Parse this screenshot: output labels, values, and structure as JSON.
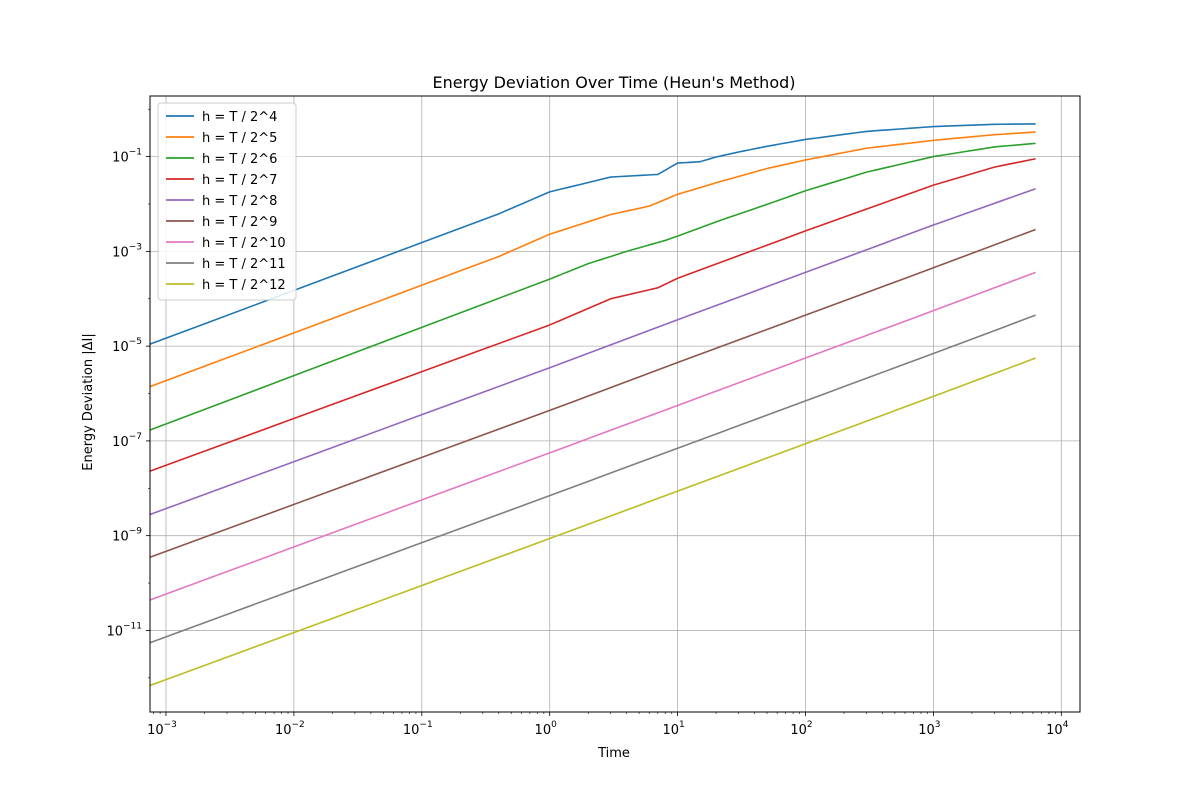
{
  "chart_data": {
    "type": "line",
    "title": "Energy Deviation Over Time (Heun's Method)",
    "xlabel": "Time",
    "ylabel": "Energy Deviation |ΔI|",
    "xscale": "log",
    "yscale": "log",
    "xlim": [
      0.00075,
      14000
    ],
    "ylim": [
      1.9e-13,
      1.9
    ],
    "grid": true,
    "legend_position": "upper-left",
    "x_tick_labels": [
      {
        "base": "10",
        "exp": "−3",
        "value": 0.001
      },
      {
        "base": "10",
        "exp": "−2",
        "value": 0.01
      },
      {
        "base": "10",
        "exp": "−1",
        "value": 0.1
      },
      {
        "base": "10",
        "exp": "0",
        "value": 1
      },
      {
        "base": "10",
        "exp": "1",
        "value": 10
      },
      {
        "base": "10",
        "exp": "2",
        "value": 100
      },
      {
        "base": "10",
        "exp": "3",
        "value": 1000
      },
      {
        "base": "10",
        "exp": "4",
        "value": 10000
      }
    ],
    "y_tick_labels": [
      {
        "base": "10",
        "exp": "−11",
        "value": 1e-11
      },
      {
        "base": "10",
        "exp": "−9",
        "value": 1e-09
      },
      {
        "base": "10",
        "exp": "−7",
        "value": 1e-07
      },
      {
        "base": "10",
        "exp": "−5",
        "value": 1e-05
      },
      {
        "base": "10",
        "exp": "−3",
        "value": 0.001
      },
      {
        "base": "10",
        "exp": "−1",
        "value": 0.1
      }
    ],
    "series": [
      {
        "name": "h = T / 2^4",
        "color": "#1f77b4",
        "x": [
          0.00075,
          0.4,
          1,
          3,
          7,
          10,
          15,
          20,
          30,
          50,
          100,
          300,
          1000,
          3000,
          6300
        ],
        "y": [
          1.1e-05,
          0.0062,
          0.018,
          0.037,
          0.042,
          0.073,
          0.078,
          0.098,
          0.125,
          0.165,
          0.23,
          0.34,
          0.43,
          0.48,
          0.49
        ]
      },
      {
        "name": "h = T / 2^5",
        "color": "#ff7f0e",
        "x": [
          0.00075,
          0.4,
          1,
          3,
          6,
          10,
          20,
          50,
          100,
          300,
          1000,
          3000,
          6300
        ],
        "y": [
          1.4e-06,
          0.00078,
          0.0023,
          0.006,
          0.009,
          0.016,
          0.028,
          0.056,
          0.085,
          0.15,
          0.22,
          0.29,
          0.33
        ]
      },
      {
        "name": "h = T / 2^6",
        "color": "#2ca02c",
        "x": [
          0.00075,
          1,
          2,
          4,
          8,
          10,
          20,
          50,
          100,
          300,
          1000,
          3000,
          6300
        ],
        "y": [
          1.7e-07,
          0.00026,
          0.00055,
          0.001,
          0.0017,
          0.0021,
          0.0042,
          0.0098,
          0.019,
          0.047,
          0.1,
          0.16,
          0.19
        ]
      },
      {
        "name": "h = T / 2^7",
        "color": "#d62728",
        "x": [
          0.00075,
          1,
          3,
          7,
          10,
          100,
          1000,
          3000,
          6300
        ],
        "y": [
          2.3e-08,
          2.8e-05,
          0.0001,
          0.00017,
          0.00027,
          0.0027,
          0.025,
          0.06,
          0.09
        ]
      },
      {
        "name": "h = T / 2^8",
        "color": "#9467bd",
        "x": [
          0.00075,
          1,
          10,
          100,
          1000,
          6300
        ],
        "y": [
          2.8e-09,
          3.5e-06,
          3.6e-05,
          0.00036,
          0.0036,
          0.021
        ]
      },
      {
        "name": "h = T / 2^9",
        "color": "#8c564b",
        "x": [
          0.00075,
          1,
          10,
          100,
          1000,
          6300
        ],
        "y": [
          3.5e-10,
          4.4e-07,
          4.5e-06,
          4.5e-05,
          0.00045,
          0.0029
        ]
      },
      {
        "name": "h = T / 2^10",
        "color": "#e377c2",
        "x": [
          0.00075,
          1,
          10,
          100,
          1000,
          6300
        ],
        "y": [
          4.4e-11,
          5.6e-08,
          5.6e-07,
          5.6e-06,
          5.6e-05,
          0.00036
        ]
      },
      {
        "name": "h = T / 2^11",
        "color": "#7f7f7f",
        "x": [
          0.00075,
          1,
          10,
          100,
          1000,
          6300
        ],
        "y": [
          5.5e-12,
          7e-09,
          7e-08,
          7e-07,
          7e-06,
          4.5e-05
        ]
      },
      {
        "name": "h = T / 2^12",
        "color": "#bcbd22",
        "x": [
          0.00075,
          1,
          10,
          100,
          1000,
          6300
        ],
        "y": [
          6.9e-13,
          8.7e-10,
          8.7e-09,
          8.7e-08,
          8.7e-07,
          5.6e-06
        ]
      }
    ]
  }
}
